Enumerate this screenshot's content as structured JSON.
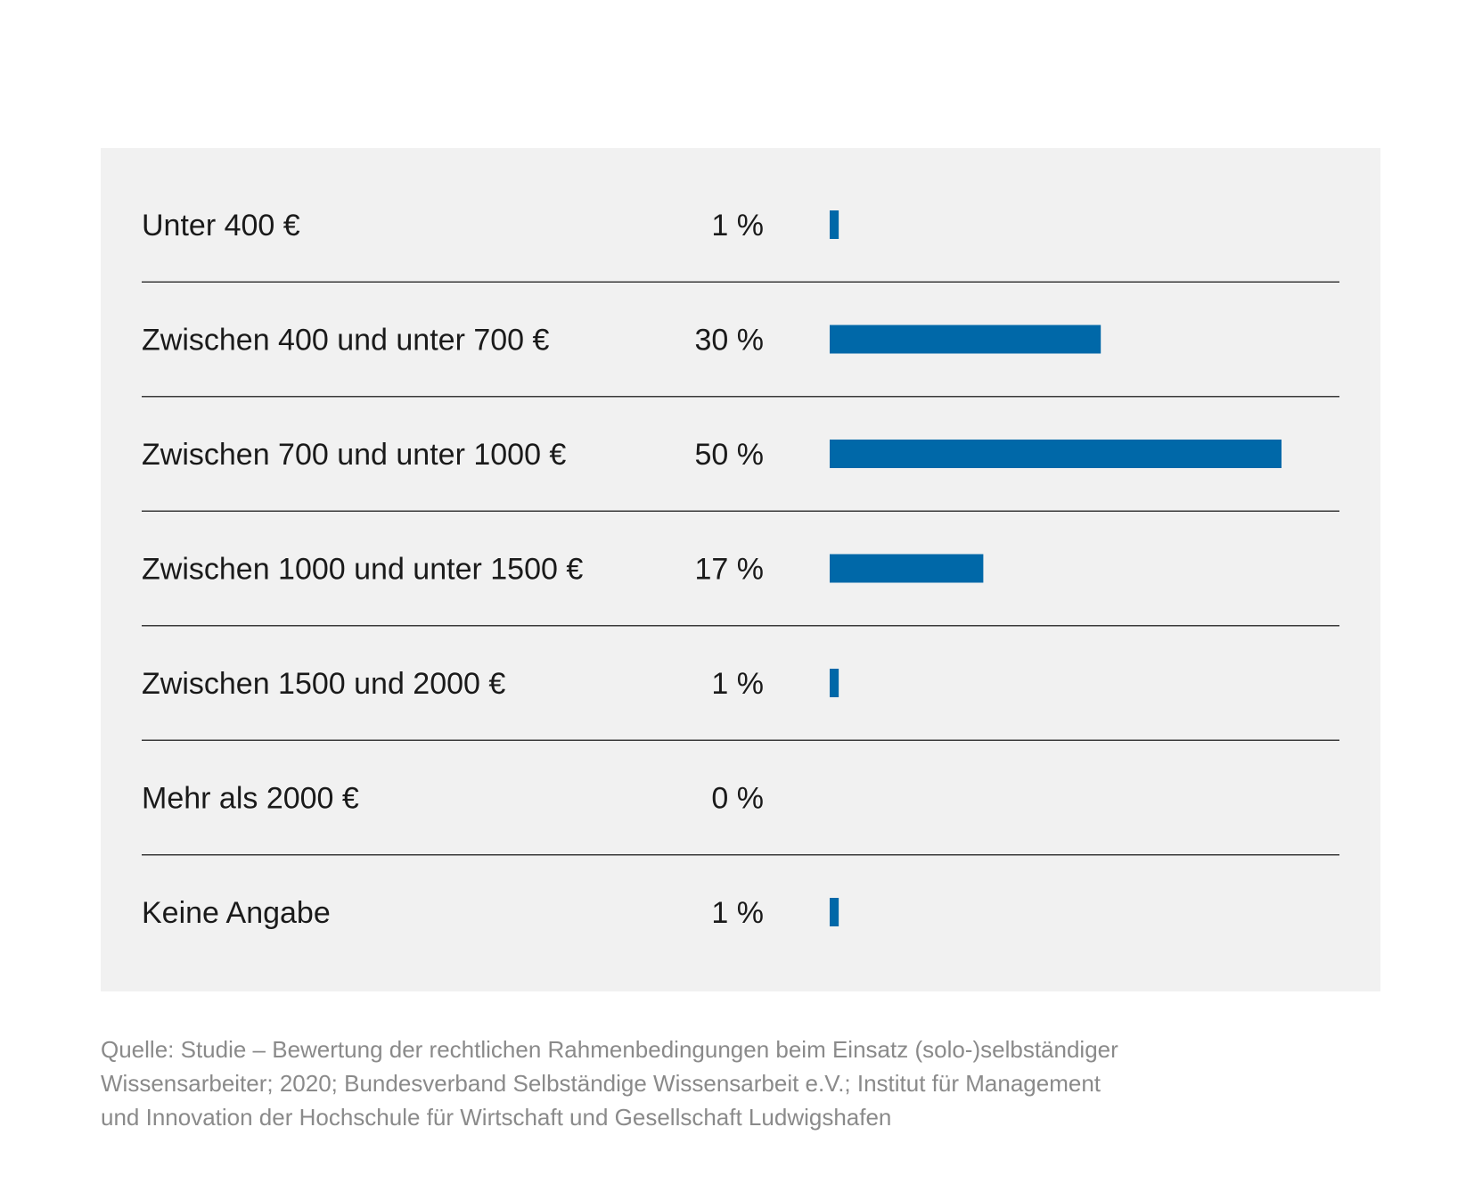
{
  "chart_data": {
    "type": "bar",
    "orientation": "horizontal",
    "categories": [
      "Unter 400 €",
      "Zwischen 400 und unter 700 €",
      "Zwischen 700 und unter 1000 €",
      "Zwischen 1000 und unter 1500 €",
      "Zwischen 1500 und 2000 €",
      "Mehr als 2000 €",
      "Keine Angabe"
    ],
    "values": [
      1,
      30,
      50,
      17,
      1,
      0,
      1
    ],
    "value_labels": [
      "1 %",
      "30 %",
      "50 %",
      "17 %",
      "1 %",
      "0 %",
      "1 %"
    ],
    "unit": "%",
    "xlim": [
      0,
      50
    ],
    "bar_color": "#0068a8",
    "grid": false,
    "legend": "none"
  },
  "source": {
    "lines": [
      "Quelle: Studie – Bewertung der rechtlichen Rahmenbedingungen beim Einsatz (solo-)selbständiger",
      "Wissensarbeiter; 2020; Bundesverband Selbständige Wissensarbeit e.V.; Institut für Management",
      "und Innovation der Hochschule für Wirtschaft und Gesellschaft Ludwigshafen"
    ]
  }
}
